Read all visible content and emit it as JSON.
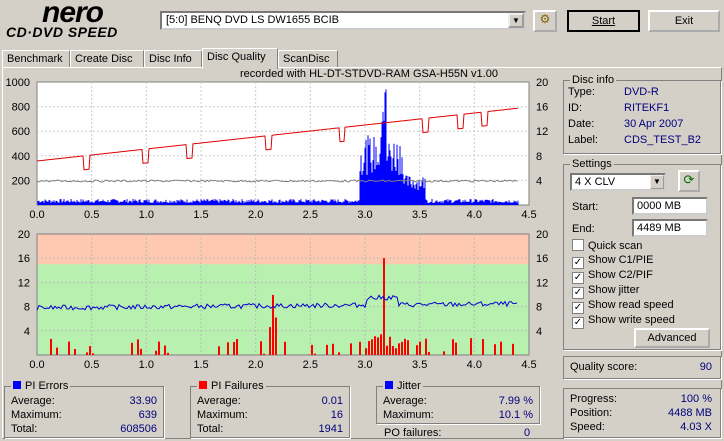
{
  "app": {
    "logo_top": "nero",
    "logo_bottom": "CD·DVD SPEED"
  },
  "toolbar": {
    "drive": "[5:0]  BENQ DVD LS DW1655 BCIB",
    "start": "Start",
    "exit": "Exit"
  },
  "tabs": [
    "Benchmark",
    "Create Disc",
    "Disc Info",
    "Disc Quality",
    "ScanDisc"
  ],
  "recorded": "recorded with HL-DT-STDVD-RAM GSA-H55N v1.00",
  "disc_info": {
    "title": "Disc info",
    "type_label": "Type:",
    "type": "DVD-R",
    "id_label": "ID:",
    "id": "RITEKF1",
    "date_label": "Date:",
    "date": "30 Apr 2007",
    "label_label": "Label:",
    "label": "CDS_TEST_B2"
  },
  "settings": {
    "title": "Settings",
    "speed": "4 X CLV",
    "start_label": "Start:",
    "start": "0000 MB",
    "end_label": "End:",
    "end": "4489 MB",
    "quick_scan": "Quick scan",
    "show_c1": "Show C1/PIE",
    "show_c2": "Show C2/PIF",
    "show_jitter": "Show jitter",
    "show_read": "Show read speed",
    "show_write": "Show write speed",
    "advanced": "Advanced"
  },
  "quality": {
    "label": "Quality score:",
    "value": "90"
  },
  "progress": {
    "progress_label": "Progress:",
    "progress": "100 %",
    "position_label": "Position:",
    "position": "4488 MB",
    "speed_label": "Speed:",
    "speed": "4.03 X"
  },
  "pi_errors": {
    "title": "PI Errors",
    "avg_label": "Average:",
    "avg": "33.90",
    "max_label": "Maximum:",
    "max": "639",
    "total_label": "Total:",
    "total": "608506"
  },
  "pi_failures": {
    "title": "PI Failures",
    "avg_label": "Average:",
    "avg": "0.01",
    "max_label": "Maximum:",
    "max": "16",
    "total_label": "Total:",
    "total": "1941"
  },
  "jitter": {
    "title": "Jitter",
    "avg_label": "Average:",
    "avg": "7.99 %",
    "max_label": "Maximum:",
    "max": "10.1 %",
    "po_label": "PO failures:",
    "po": "0"
  },
  "colors": {
    "pie": "#0000ff",
    "pif": "#ff0000",
    "jitter": "#0000cc",
    "speed": "#e00000",
    "band_red": "#ffc8b0",
    "band_green": "#b8f0b0"
  },
  "chart_data": [
    {
      "type": "bar",
      "name": "PI Errors",
      "x_ticks": [
        "0.0",
        "0.5",
        "1.0",
        "1.5",
        "2.0",
        "2.5",
        "3.0",
        "3.5",
        "4.0",
        "4.5"
      ],
      "y_left_ticks": [
        "200",
        "400",
        "600",
        "800",
        "1000"
      ],
      "y_right_ticks": [
        "4",
        "8",
        "12",
        "16",
        "20"
      ],
      "xlim": [
        0,
        4.5
      ],
      "ylim": [
        0,
        1000
      ]
    },
    {
      "type": "bar",
      "name": "PI Failures",
      "x_ticks": [
        "0.0",
        "0.5",
        "1.0",
        "1.5",
        "2.0",
        "2.5",
        "3.0",
        "3.5",
        "4.0",
        "4.5"
      ],
      "y_left_ticks": [
        "4",
        "8",
        "12",
        "16",
        "20"
      ],
      "y_right_ticks": [
        "4",
        "8",
        "12",
        "16",
        "20"
      ],
      "xlim": [
        0,
        4.5
      ],
      "ylim": [
        0,
        20
      ]
    }
  ]
}
